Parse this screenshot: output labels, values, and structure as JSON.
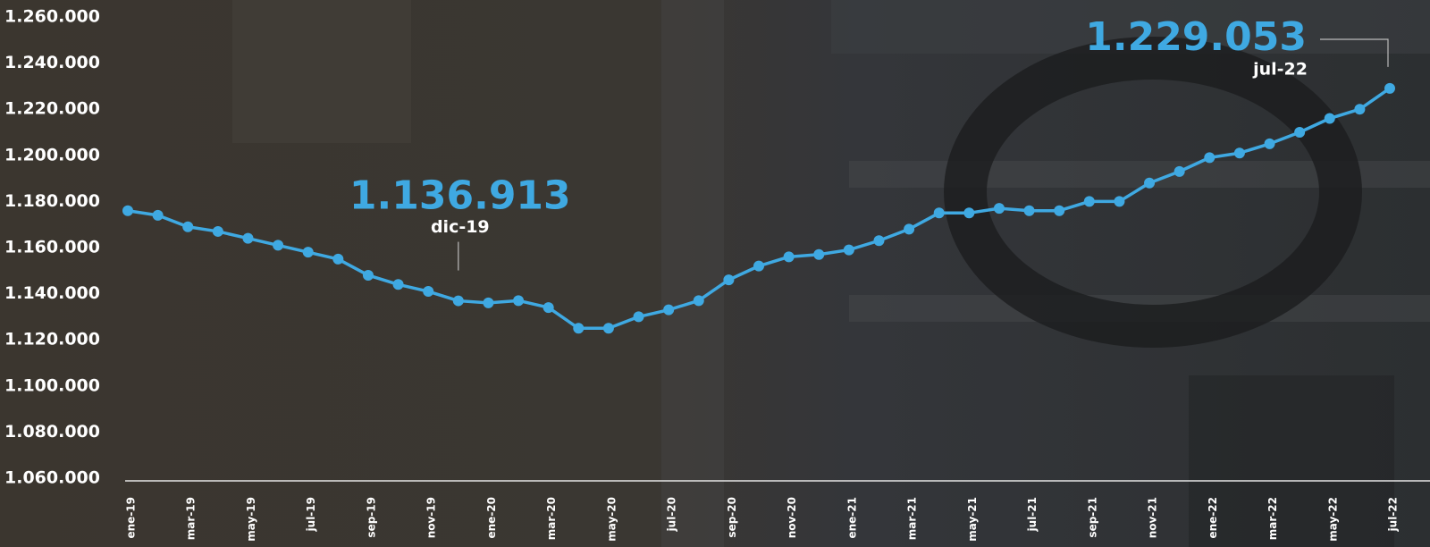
{
  "chart_data": {
    "type": "line",
    "categories": [
      "ene-19",
      null,
      "mar-19",
      null,
      "may-19",
      null,
      "jul-19",
      null,
      "sep-19",
      null,
      "nov-19",
      null,
      "ene-20",
      null,
      "mar-20",
      null,
      "may-20",
      null,
      "jul-20",
      null,
      "sep-20",
      null,
      "nov-20",
      null,
      "ene-21",
      null,
      "mar-21",
      null,
      "may-21",
      null,
      "jul-21",
      null,
      "sep-21",
      null,
      "nov-21",
      null,
      "ene-22",
      null,
      "mar-22",
      null,
      "may-22",
      null,
      "jul-22"
    ],
    "series": [
      {
        "color": "#3fa9e2",
        "values": [
          1176000,
          1174000,
          1169000,
          1167000,
          1164000,
          1161000,
          1158000,
          1155000,
          1148000,
          1144000,
          1141000,
          1136913,
          1136000,
          1137000,
          1134000,
          1125000,
          1125000,
          1130000,
          1133000,
          1137000,
          1146000,
          1152000,
          1156000,
          1157000,
          1159000,
          1163000,
          1168000,
          1175000,
          1175000,
          1177000,
          1176000,
          1176000,
          1180000,
          1180000,
          1188000,
          1193000,
          1199000,
          1201000,
          1205000,
          1210000,
          1216000,
          1220000,
          1229053
        ],
        "value_labels": [
          null,
          null,
          null,
          null,
          null,
          null,
          null,
          null,
          null,
          null,
          null,
          "1.136.913",
          null,
          null,
          null,
          null,
          null,
          null,
          null,
          null,
          null,
          null,
          null,
          null,
          null,
          null,
          null,
          null,
          null,
          null,
          null,
          null,
          null,
          null,
          null,
          null,
          null,
          null,
          null,
          null,
          null,
          null,
          "1.229.053"
        ],
        "point_labels": [
          null,
          null,
          null,
          null,
          null,
          null,
          null,
          null,
          null,
          null,
          null,
          "dic-19",
          null,
          null,
          null,
          null,
          null,
          null,
          null,
          null,
          null,
          null,
          null,
          null,
          null,
          null,
          null,
          null,
          null,
          null,
          null,
          null,
          null,
          null,
          null,
          null,
          null,
          null,
          null,
          null,
          null,
          null,
          "jul-22"
        ]
      }
    ],
    "ylim": [
      1060000,
      1260000
    ],
    "yticks": [
      {
        "value": 1060000,
        "label": "1.060.000"
      },
      {
        "value": 1080000,
        "label": "1.080.000"
      },
      {
        "value": 1100000,
        "label": "1.100.000"
      },
      {
        "value": 1120000,
        "label": "1.120.000"
      },
      {
        "value": 1140000,
        "label": "1.140.000"
      },
      {
        "value": 1160000,
        "label": "1.160.000"
      },
      {
        "value": 1180000,
        "label": "1.180.000"
      },
      {
        "value": 1200000,
        "label": "1.200.000"
      },
      {
        "value": 1220000,
        "label": "1.220.000"
      },
      {
        "value": 1240000,
        "label": "1.240.000"
      },
      {
        "value": 1260000,
        "label": "1.260.000"
      }
    ],
    "grid": false
  }
}
